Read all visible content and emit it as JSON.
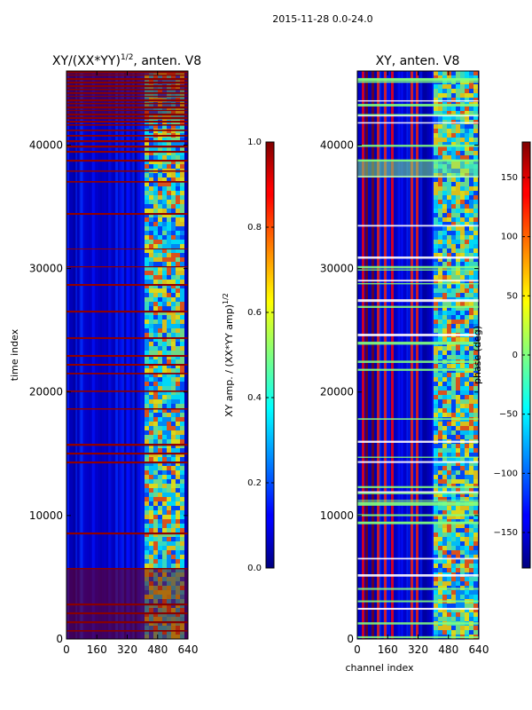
{
  "suptitle": "2015-11-28 0.0-24.0",
  "chart_data": [
    {
      "type": "heatmap",
      "title": "XY/(XX*YY)^1/2, anten. V8",
      "title_main": "XY/(XX*YY)",
      "title_sup": "1/2",
      "title_rest": ", anten. V8",
      "xlabel": "",
      "ylabel": "time index",
      "x_range": [
        0,
        640
      ],
      "y_range": [
        0,
        46000
      ],
      "x_ticks": [
        0,
        160,
        320,
        480,
        640
      ],
      "x_tick_labels": [
        "0",
        "160",
        "320",
        "480",
        "640"
      ],
      "y_ticks": [
        0,
        10000,
        20000,
        30000,
        40000
      ],
      "y_tick_labels": [
        "0",
        "10000",
        "20000",
        "30000",
        "40000"
      ],
      "colorbar": {
        "label_main": "XY amp. / (XX*YY amp)",
        "label_sup": "1/2",
        "range": [
          0.0,
          1.0
        ],
        "ticks": [
          0.0,
          0.2,
          0.4,
          0.6,
          0.8,
          1.0
        ],
        "tick_labels": [
          "0.0",
          "0.2",
          "0.4",
          "0.6",
          "0.8",
          "1.0"
        ]
      },
      "colormap": "jet"
    },
    {
      "type": "heatmap",
      "title": "XY, anten. V8",
      "xlabel": "channel index",
      "ylabel": "",
      "x_range": [
        0,
        640
      ],
      "y_range": [
        0,
        46000
      ],
      "x_ticks": [
        0,
        160,
        320,
        480,
        640
      ],
      "x_tick_labels": [
        "0",
        "160",
        "320",
        "480",
        "640"
      ],
      "y_ticks": [
        0,
        10000,
        20000,
        30000,
        40000
      ],
      "y_tick_labels": [
        "0",
        "10000",
        "20000",
        "30000",
        "40000"
      ],
      "colorbar": {
        "label": "phase (deg)",
        "range": [
          -180,
          180
        ],
        "ticks": [
          -150,
          -100,
          -50,
          0,
          50,
          100,
          150
        ],
        "tick_labels": [
          "−150",
          "−100",
          "−50",
          "0",
          "50",
          "100",
          "150"
        ]
      },
      "colormap": "jet"
    }
  ]
}
